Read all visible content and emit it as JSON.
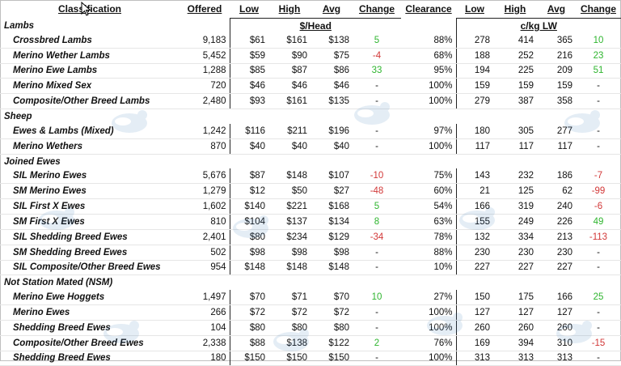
{
  "headers": {
    "classification": "Classification",
    "offered": "Offered",
    "low": "Low",
    "high": "High",
    "avg": "Avg",
    "change": "Change",
    "clearance": "Clearance",
    "low2": "Low",
    "high2": "High",
    "avg2": "Avg",
    "change2": "Change"
  },
  "units": {
    "per_head": "$/Head",
    "per_kg": "c/kg LW"
  },
  "sections": [
    {
      "title": "Lambs",
      "rows": [
        {
          "name": "Crossbred Lambs",
          "offered": "9,183",
          "low": "$61",
          "high": "$161",
          "avg": "$138",
          "change": "5",
          "clearance": "88%",
          "low2": "278",
          "high2": "414",
          "avg2": "365",
          "change2": "10"
        },
        {
          "name": "Merino Wether Lambs",
          "offered": "5,452",
          "low": "$59",
          "high": "$90",
          "avg": "$75",
          "change": "-4",
          "clearance": "68%",
          "low2": "188",
          "high2": "252",
          "avg2": "216",
          "change2": "23"
        },
        {
          "name": "Merino Ewe Lambs",
          "offered": "1,288",
          "low": "$85",
          "high": "$87",
          "avg": "$86",
          "change": "33",
          "clearance": "95%",
          "low2": "194",
          "high2": "225",
          "avg2": "209",
          "change2": "51"
        },
        {
          "name": "Merino Mixed Sex",
          "offered": "720",
          "low": "$46",
          "high": "$46",
          "avg": "$46",
          "change": "-",
          "clearance": "100%",
          "low2": "159",
          "high2": "159",
          "avg2": "159",
          "change2": "-"
        },
        {
          "name": "Composite/Other Breed Lambs",
          "offered": "2,480",
          "low": "$93",
          "high": "$161",
          "avg": "$135",
          "change": "-",
          "clearance": "100%",
          "low2": "279",
          "high2": "387",
          "avg2": "358",
          "change2": "-"
        }
      ]
    },
    {
      "title": "Sheep",
      "rows": [
        {
          "name": "Ewes & Lambs (Mixed)",
          "offered": "1,242",
          "low": "$116",
          "high": "$211",
          "avg": "$196",
          "change": "-",
          "clearance": "97%",
          "low2": "180",
          "high2": "305",
          "avg2": "277",
          "change2": "-"
        },
        {
          "name": "Merino Wethers",
          "offered": "870",
          "low": "$40",
          "high": "$40",
          "avg": "$40",
          "change": "-",
          "clearance": "100%",
          "low2": "117",
          "high2": "117",
          "avg2": "117",
          "change2": "-"
        }
      ]
    },
    {
      "title": "Joined Ewes",
      "rows": [
        {
          "name": "SIL Merino Ewes",
          "offered": "5,676",
          "low": "$87",
          "high": "$148",
          "avg": "$107",
          "change": "-10",
          "clearance": "75%",
          "low2": "143",
          "high2": "232",
          "avg2": "186",
          "change2": "-7"
        },
        {
          "name": "SM Merino Ewes",
          "offered": "1,279",
          "low": "$12",
          "high": "$50",
          "avg": "$27",
          "change": "-48",
          "clearance": "60%",
          "low2": "21",
          "high2": "125",
          "avg2": "62",
          "change2": "-99"
        },
        {
          "name": "SIL First X Ewes",
          "offered": "1,602",
          "low": "$140",
          "high": "$221",
          "avg": "$168",
          "change": "5",
          "clearance": "54%",
          "low2": "166",
          "high2": "319",
          "avg2": "240",
          "change2": "-6"
        },
        {
          "name": "SM First X Ewes",
          "offered": "810",
          "low": "$104",
          "high": "$137",
          "avg": "$134",
          "change": "8",
          "clearance": "63%",
          "low2": "155",
          "high2": "249",
          "avg2": "226",
          "change2": "49"
        },
        {
          "name": "SIL Shedding Breed Ewes",
          "offered": "2,401",
          "low": "$80",
          "high": "$234",
          "avg": "$129",
          "change": "-34",
          "clearance": "78%",
          "low2": "132",
          "high2": "334",
          "avg2": "213",
          "change2": "-113"
        },
        {
          "name": "SM Shedding Breed Ewes",
          "offered": "502",
          "low": "$98",
          "high": "$98",
          "avg": "$98",
          "change": "-",
          "clearance": "88%",
          "low2": "230",
          "high2": "230",
          "avg2": "230",
          "change2": "-"
        },
        {
          "name": "SIL Composite/Other Breed Ewes",
          "offered": "954",
          "low": "$148",
          "high": "$148",
          "avg": "$148",
          "change": "-",
          "clearance": "10%",
          "low2": "227",
          "high2": "227",
          "avg2": "227",
          "change2": "-"
        }
      ]
    },
    {
      "title": "Not Station Mated (NSM)",
      "rows": [
        {
          "name": "Merino Ewe Hoggets",
          "offered": "1,497",
          "low": "$70",
          "high": "$71",
          "avg": "$70",
          "change": "10",
          "clearance": "27%",
          "low2": "150",
          "high2": "175",
          "avg2": "166",
          "change2": "25"
        },
        {
          "name": "Merino Ewes",
          "offered": "266",
          "low": "$72",
          "high": "$72",
          "avg": "$72",
          "change": "-",
          "clearance": "100%",
          "low2": "127",
          "high2": "127",
          "avg2": "127",
          "change2": "-"
        },
        {
          "name": "Shedding Breed Ewes",
          "offered": "104",
          "low": "$80",
          "high": "$80",
          "avg": "$80",
          "change": "-",
          "clearance": "100%",
          "low2": "260",
          "high2": "260",
          "avg2": "260",
          "change2": "-"
        },
        {
          "name": "Composite/Other Breed Ewes",
          "offered": "2,338",
          "low": "$88",
          "high": "$138",
          "avg": "$122",
          "change": "2",
          "clearance": "76%",
          "low2": "169",
          "high2": "394",
          "avg2": "310",
          "change2": "-15"
        },
        {
          "name": "Shedding Breed Ewes",
          "offered": "180",
          "low": "$150",
          "high": "$150",
          "avg": "$150",
          "change": "-",
          "clearance": "100%",
          "low2": "313",
          "high2": "313",
          "avg2": "313",
          "change2": "-"
        }
      ]
    }
  ],
  "colors": {
    "positive": "#2fb52f",
    "negative": "#d23838"
  }
}
